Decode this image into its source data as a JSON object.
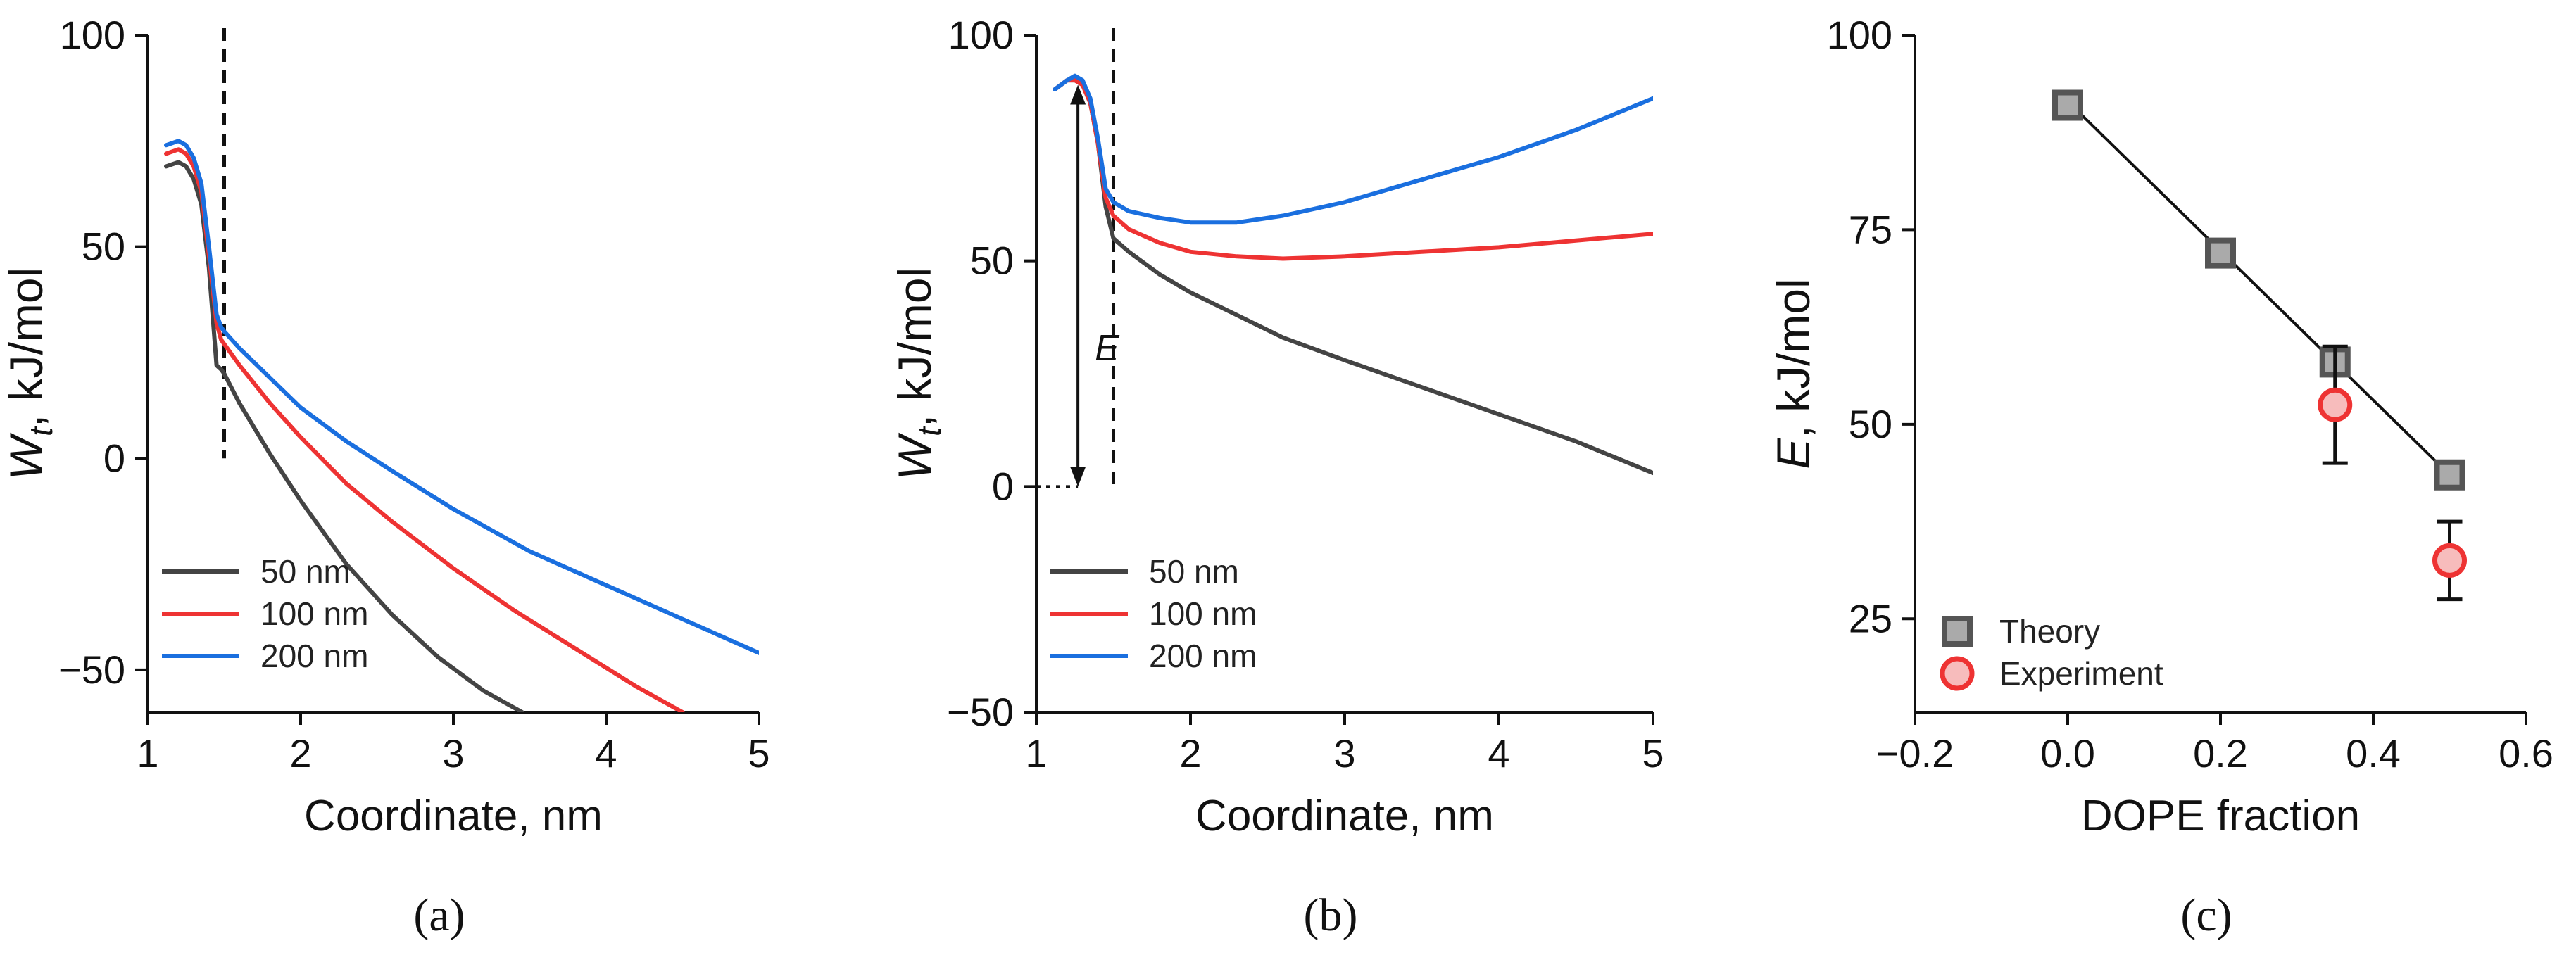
{
  "chart_data": [
    {
      "id": "a",
      "type": "line",
      "panel_label": "(a)",
      "xlabel": "Coordinate, nm",
      "ylabel": "W_t, kJ/mol",
      "ylabel_main": "W",
      "ylabel_sub": "t",
      "ylabel_rest": ", kJ/mol",
      "xlim": [
        1,
        5
      ],
      "ylim": [
        -60,
        100
      ],
      "xticks": [
        1,
        2,
        3,
        4,
        5
      ],
      "yticks": [
        -50,
        0,
        50,
        100
      ],
      "ytick_labels": [
        "−50",
        "0",
        "50",
        "100"
      ],
      "vline": 1.5,
      "legend": {
        "position": "bottom-left",
        "entries": [
          "50 nm",
          "100 nm",
          "200 nm"
        ]
      },
      "series": [
        {
          "name": "50 nm",
          "color": "#444444",
          "x": [
            1.12,
            1.2,
            1.25,
            1.3,
            1.35,
            1.4,
            1.45,
            1.48,
            1.5,
            1.6,
            1.8,
            2.0,
            2.3,
            2.6,
            2.9,
            3.2,
            3.45
          ],
          "y": [
            69,
            70,
            69,
            66,
            60,
            45,
            22,
            21,
            20,
            13,
            1,
            -10,
            -25,
            -37,
            -47,
            -55,
            -60
          ]
        },
        {
          "name": "100 nm",
          "color": "#ee3333",
          "x": [
            1.12,
            1.2,
            1.25,
            1.3,
            1.35,
            1.4,
            1.45,
            1.48,
            1.5,
            1.6,
            1.8,
            2.0,
            2.3,
            2.6,
            3.0,
            3.4,
            3.8,
            4.2,
            4.5
          ],
          "y": [
            72,
            73,
            72,
            69,
            63,
            48,
            32,
            28,
            27,
            22,
            13,
            5,
            -6,
            -15,
            -26,
            -36,
            -45,
            -54,
            -60
          ]
        },
        {
          "name": "200 nm",
          "color": "#1a6fdf",
          "x": [
            1.12,
            1.2,
            1.25,
            1.3,
            1.35,
            1.4,
            1.45,
            1.48,
            1.5,
            1.6,
            1.8,
            2.0,
            2.3,
            2.6,
            3.0,
            3.5,
            4.0,
            4.5,
            5.0
          ],
          "y": [
            74,
            75,
            74,
            71,
            65,
            50,
            34,
            31,
            30,
            26,
            19,
            12,
            4,
            -3,
            -12,
            -22,
            -30,
            -38,
            -46
          ]
        }
      ]
    },
    {
      "id": "b",
      "type": "line",
      "panel_label": "(b)",
      "xlabel": "Coordinate, nm",
      "ylabel": "W_t, kJ/mol",
      "ylabel_main": "W",
      "ylabel_sub": "t",
      "ylabel_rest": ", kJ/mol",
      "xlim": [
        1,
        5
      ],
      "ylim": [
        -50,
        100
      ],
      "xticks": [
        1,
        2,
        3,
        4,
        5
      ],
      "yticks": [
        -50,
        0,
        50,
        100
      ],
      "ytick_labels": [
        "−50",
        "0",
        "50",
        "100"
      ],
      "vline": 1.5,
      "energy_arrow": {
        "x": 1.27,
        "from": 0,
        "to": 89,
        "label": "E"
      },
      "legend": {
        "position": "bottom-left",
        "entries": [
          "50 nm",
          "100 nm",
          "200 nm"
        ]
      },
      "series": [
        {
          "name": "50 nm",
          "color": "#444444",
          "x": [
            1.12,
            1.2,
            1.25,
            1.3,
            1.35,
            1.4,
            1.45,
            1.5,
            1.6,
            1.8,
            2.0,
            2.3,
            2.6,
            3.0,
            3.5,
            4.0,
            4.5,
            5.0
          ],
          "y": [
            88,
            90,
            90,
            89,
            85,
            76,
            62,
            55,
            52,
            47,
            43,
            38,
            33,
            28,
            22,
            16,
            10,
            3
          ]
        },
        {
          "name": "100 nm",
          "color": "#ee3333",
          "x": [
            1.12,
            1.2,
            1.25,
            1.3,
            1.35,
            1.4,
            1.45,
            1.5,
            1.6,
            1.8,
            2.0,
            2.3,
            2.6,
            3.0,
            3.5,
            4.0,
            4.5,
            5.0
          ],
          "y": [
            88,
            90,
            90,
            89,
            85,
            76,
            64,
            60,
            57,
            54,
            52,
            51,
            50.5,
            51,
            52,
            53,
            54.5,
            56
          ]
        },
        {
          "name": "200 nm",
          "color": "#1a6fdf",
          "x": [
            1.12,
            1.2,
            1.25,
            1.3,
            1.35,
            1.4,
            1.45,
            1.5,
            1.6,
            1.8,
            2.0,
            2.3,
            2.6,
            3.0,
            3.5,
            4.0,
            4.5,
            5.0
          ],
          "y": [
            88,
            90,
            91,
            90,
            86,
            77,
            66,
            63,
            61,
            59.5,
            58.5,
            58.5,
            60,
            63,
            68,
            73,
            79,
            86
          ]
        }
      ]
    },
    {
      "id": "c",
      "type": "scatter",
      "panel_label": "(c)",
      "xlabel": "DOPE fraction",
      "ylabel": "E, kJ/mol",
      "ylabel_main": "E",
      "ylabel_rest": ", kJ/mol",
      "xlim": [
        -0.2,
        0.6
      ],
      "ylim": [
        13,
        100
      ],
      "xticks": [
        -0.2,
        0.0,
        0.2,
        0.4,
        0.6
      ],
      "xtick_labels": [
        "−0.2",
        "0.0",
        "0.2",
        "0.4",
        "0.6"
      ],
      "yticks": [
        25,
        50,
        75,
        100
      ],
      "ytick_labels": [
        "25",
        "50",
        "75",
        "100"
      ],
      "legend": {
        "position": "bottom-left",
        "entries": [
          "Theory",
          "Experiment"
        ]
      },
      "series": [
        {
          "name": "Theory",
          "marker": "square",
          "color": "#555555",
          "fill": "#aaaaaa",
          "x": [
            0.0,
            0.2,
            0.35,
            0.5
          ],
          "y": [
            91,
            72,
            58,
            43.5
          ]
        },
        {
          "name": "Experiment",
          "marker": "circle",
          "color": "#ee3333",
          "fill": "#f7bcbc",
          "x": [
            0.35,
            0.5
          ],
          "y": [
            52.5,
            32.5
          ],
          "yerr": [
            7.5,
            5
          ]
        }
      ],
      "fit_line": {
        "x": [
          0.0,
          0.5
        ],
        "y": [
          91.5,
          43.5
        ]
      }
    }
  ]
}
